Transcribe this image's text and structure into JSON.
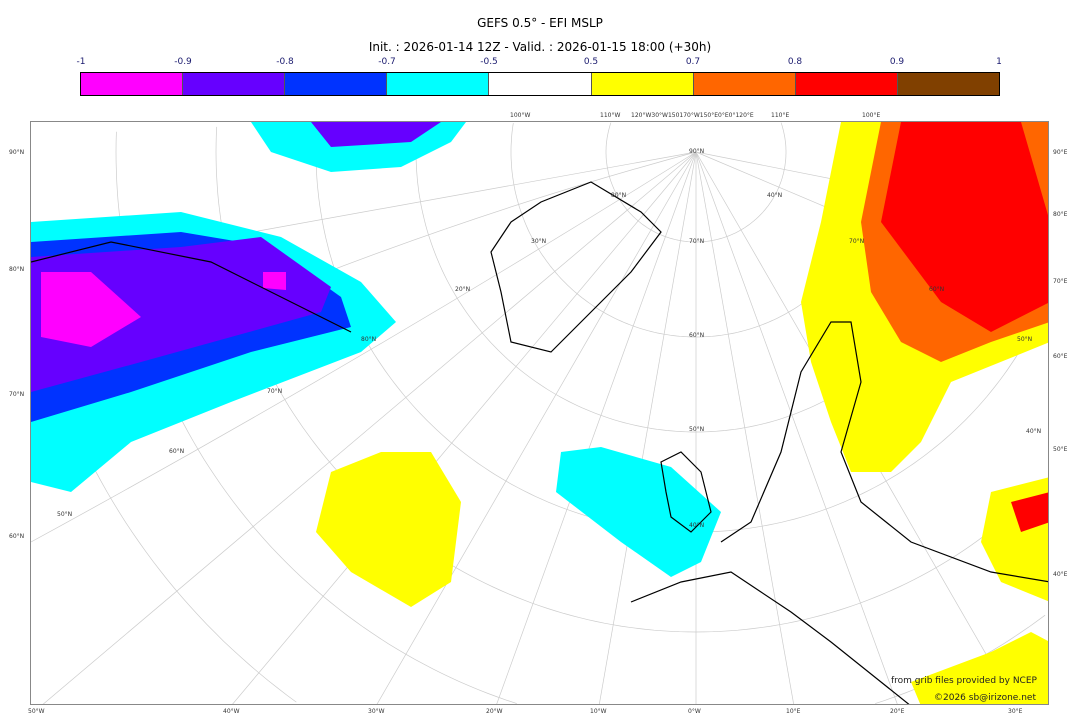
{
  "header": {
    "title": "GEFS 0.5° - EFI MSLP",
    "subtitle": "Init. : 2026-01-14 12Z - Valid. : 2026-01-15 18:00 (+30h)"
  },
  "colorbar": {
    "ticks": [
      "-1",
      "-0.9",
      "-0.8",
      "-0.7",
      "-0.5",
      "0.5",
      "0.7",
      "0.8",
      "0.9",
      "1"
    ],
    "colors": [
      "#ff00ff",
      "#6600ff",
      "#0033ff",
      "#00ffff",
      "#ffffff",
      "#ffff00",
      "#ff6600",
      "#ff0000",
      "#804000"
    ]
  },
  "map": {
    "left_labels": [
      "90°N",
      "80°N",
      "70°N",
      "60°N"
    ],
    "right_labels": [
      "90°E",
      "80°E",
      "70°E",
      "60°E",
      "50°E",
      "40°E"
    ],
    "bottom_labels": [
      "50°W",
      "40°W",
      "30°W",
      "20°W",
      "10°W",
      "0°W",
      "10°E",
      "20°E",
      "30°E"
    ],
    "top_labels": [
      "100°W",
      "110°W",
      "120°W30°W150170°W150°E0°E0°120°E",
      "110°E",
      "100°E"
    ],
    "inner_labels": [
      "90°N",
      "80°N",
      "70°N",
      "60°N",
      "50°N",
      "40°N",
      "30°N",
      "20°N",
      "80°N",
      "70°N",
      "60°N",
      "50°N",
      "40°N",
      "70°N",
      "60°N",
      "50°N",
      "40°N"
    ]
  },
  "credits": {
    "source": "from grib files provided by NCEP",
    "copyright": "©2026 sb@irizone.net"
  }
}
